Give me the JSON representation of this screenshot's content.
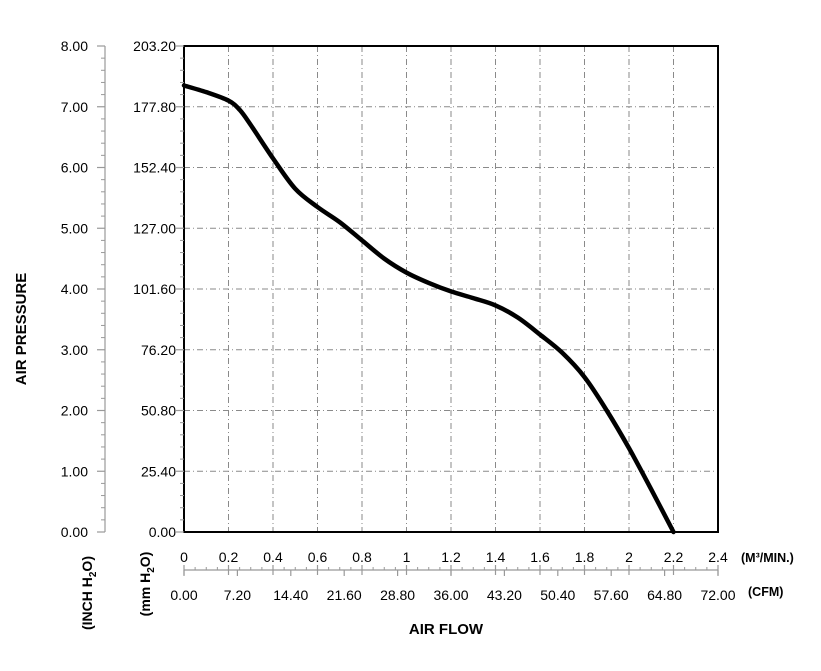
{
  "chart_data": {
    "type": "line",
    "ylabel": "AIR PRESSURE",
    "xlabel": "AIR FLOW",
    "y_axes": [
      {
        "unit_label": "(INCH H2O)",
        "ticks": [
          "0.00",
          "1.00",
          "2.00",
          "3.00",
          "4.00",
          "5.00",
          "6.00",
          "7.00",
          "8.00"
        ],
        "range": [
          0,
          8
        ]
      },
      {
        "unit_label": "(mm H2O)",
        "ticks": [
          "0.00",
          "25.40",
          "50.80",
          "76.20",
          "101.60",
          "127.00",
          "152.40",
          "177.80",
          "203.20"
        ],
        "range": [
          0,
          203.2
        ]
      }
    ],
    "x_axes": [
      {
        "unit_label": "(M³/MIN.)",
        "ticks": [
          "0",
          "0.2",
          "0.4",
          "0.6",
          "0.8",
          "1",
          "1.2",
          "1.4",
          "1.6",
          "1.8",
          "2",
          "2.2",
          "2.4"
        ],
        "range": [
          0,
          2.4
        ]
      },
      {
        "unit_label": "(CFM)",
        "ticks": [
          "0.00",
          "7.20",
          "14.40",
          "21.60",
          "28.80",
          "36.00",
          "43.20",
          "50.40",
          "57.60",
          "64.80",
          "72.00"
        ],
        "range": [
          0,
          72
        ]
      }
    ],
    "series": [
      {
        "color": "#000000",
        "x": [
          0,
          0.1,
          0.2,
          0.25,
          0.3,
          0.4,
          0.5,
          0.6,
          0.7,
          0.8,
          0.9,
          1.0,
          1.1,
          1.2,
          1.3,
          1.4,
          1.5,
          1.6,
          1.7,
          1.8,
          1.9,
          2.0,
          2.1,
          2.2
        ],
        "y": [
          7.35,
          7.24,
          7.1,
          6.95,
          6.7,
          6.15,
          5.65,
          5.35,
          5.1,
          4.8,
          4.5,
          4.27,
          4.1,
          3.96,
          3.85,
          3.73,
          3.53,
          3.25,
          2.95,
          2.55,
          2.0,
          1.38,
          0.7,
          0.0
        ]
      }
    ],
    "grid": true,
    "legend": "none"
  }
}
